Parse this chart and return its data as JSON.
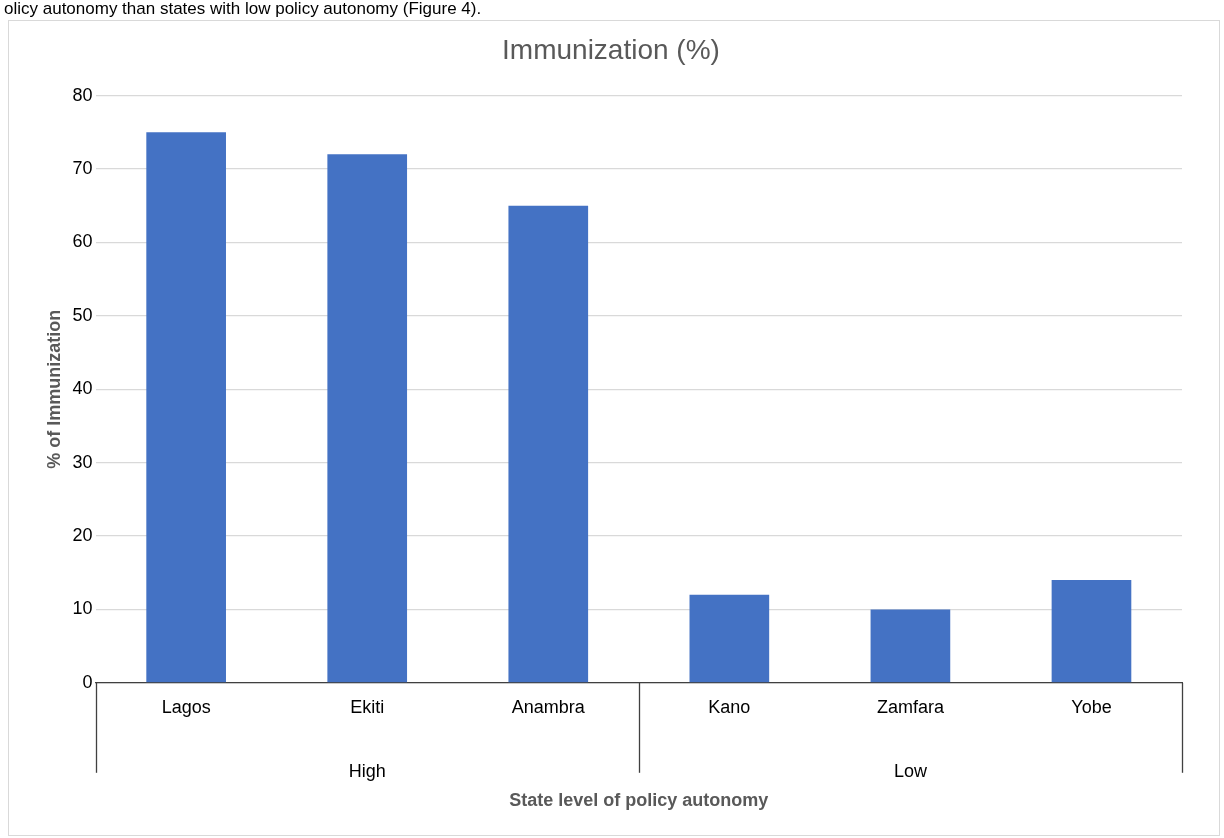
{
  "chart_data": {
    "type": "bar",
    "title": "Immunization (%)",
    "xlabel": "State level of policy autonomy",
    "ylabel": "% of Immunization",
    "categories": [
      "Lagos",
      "Ekiti",
      "Anambra",
      "Kano",
      "Zamfara",
      "Yobe"
    ],
    "values": [
      75,
      72,
      65,
      12,
      10,
      14
    ],
    "color": "#4472c4",
    "ylim": [
      0,
      80
    ],
    "yticks": [
      0,
      10,
      20,
      30,
      40,
      50,
      60,
      70,
      80
    ],
    "grid": "y",
    "annotations": [
      "olicy autonomy than states with low policy autonomy (Figure 4).",
      "High",
      "Low"
    ]
  }
}
